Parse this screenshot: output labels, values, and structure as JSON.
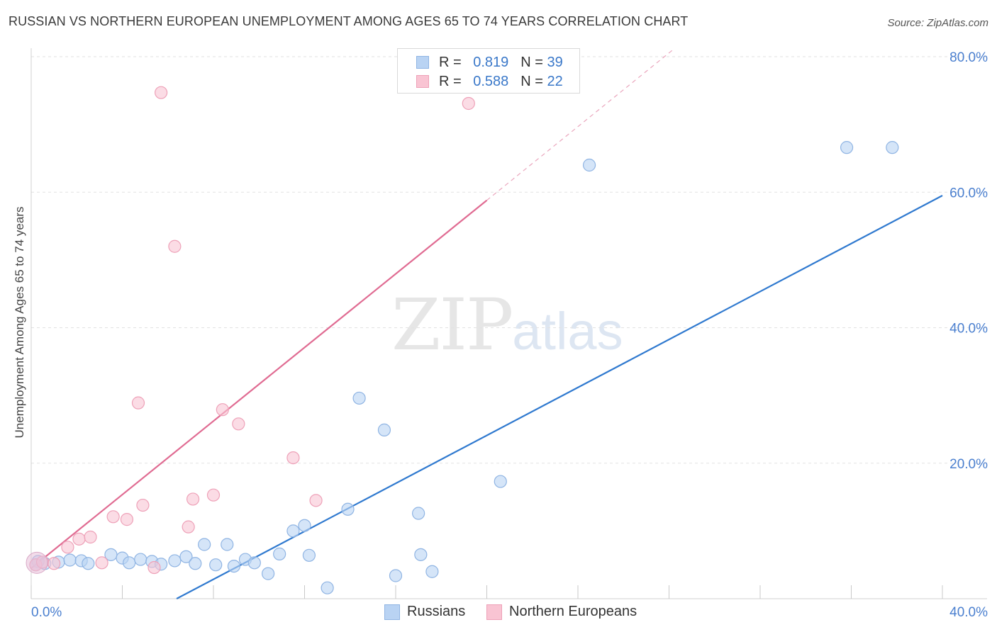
{
  "title": "RUSSIAN VS NORTHERN EUROPEAN UNEMPLOYMENT AMONG AGES 65 TO 74 YEARS CORRELATION CHART",
  "source": "Source: ZipAtlas.com",
  "watermark": {
    "zip": "ZIP",
    "atlas": "atlas"
  },
  "legend": {
    "rows": [
      {
        "r_label": "R =",
        "r_value": "0.819",
        "n_label": "N =",
        "n_value": "39"
      },
      {
        "r_label": "R =",
        "r_value": "0.588",
        "n_label": "N =",
        "n_value": "22"
      }
    ]
  },
  "bottom_legend": {
    "russians": "Russians",
    "northern": "Northern Europeans"
  },
  "colors": {
    "blue_fill": "#b9d3f3",
    "blue_stroke": "#8fb4e3",
    "blue_line": "#2f79cf",
    "pink_fill": "#f9c4d3",
    "pink_stroke": "#eea1b8",
    "pink_line": "#e06b92",
    "tick_text": "#4a7fcf",
    "grid": "#e2e2e2"
  },
  "chart_data": {
    "type": "scatter",
    "title": "RUSSIAN VS NORTHERN EUROPEAN UNEMPLOYMENT AMONG AGES 65 TO 74 YEARS CORRELATION CHART",
    "xlabel": "",
    "ylabel": "Unemployment Among Ages 65 to 74 years",
    "xlim": [
      0,
      40
    ],
    "ylim": [
      0,
      80
    ],
    "x_tick_labels": [
      "0.0%",
      "40.0%"
    ],
    "y_ticks": [
      20,
      40,
      60,
      80
    ],
    "y_tick_labels": [
      "20.0%",
      "40.0%",
      "60.0%",
      "80.0%"
    ],
    "series": [
      {
        "name": "Russians",
        "color": "blue",
        "points": [
          [
            0.3,
            5.5
          ],
          [
            0.6,
            5.2
          ],
          [
            1.2,
            5.4
          ],
          [
            1.7,
            5.7
          ],
          [
            2.2,
            5.6
          ],
          [
            2.5,
            5.2
          ],
          [
            3.5,
            6.5
          ],
          [
            4.0,
            6.0
          ],
          [
            4.3,
            5.3
          ],
          [
            4.8,
            5.8
          ],
          [
            5.3,
            5.5
          ],
          [
            5.7,
            5.1
          ],
          [
            6.3,
            5.6
          ],
          [
            6.8,
            6.2
          ],
          [
            7.2,
            5.2
          ],
          [
            7.6,
            8.0
          ],
          [
            8.1,
            5.0
          ],
          [
            8.6,
            8.0
          ],
          [
            8.9,
            4.8
          ],
          [
            9.4,
            5.8
          ],
          [
            9.8,
            5.3
          ],
          [
            10.4,
            3.7
          ],
          [
            10.9,
            6.6
          ],
          [
            11.5,
            10.0
          ],
          [
            12.0,
            10.8
          ],
          [
            12.2,
            6.4
          ],
          [
            13.0,
            1.6
          ],
          [
            13.9,
            13.2
          ],
          [
            14.4,
            29.6
          ],
          [
            15.5,
            24.9
          ],
          [
            16.0,
            3.4
          ],
          [
            17.0,
            12.6
          ],
          [
            17.1,
            6.5
          ],
          [
            17.6,
            4.0
          ],
          [
            20.6,
            17.3
          ],
          [
            24.5,
            64.0
          ],
          [
            35.8,
            66.6
          ],
          [
            37.8,
            66.6
          ],
          [
            0.2,
            5.0
          ]
        ],
        "trend": {
          "x1": 0,
          "y1": -11.3,
          "x2": 40,
          "y2": 59.5
        }
      },
      {
        "name": "Northern Europeans",
        "color": "pink",
        "points": [
          [
            0.2,
            5.0
          ],
          [
            0.5,
            5.4
          ],
          [
            1.0,
            5.2
          ],
          [
            1.6,
            7.6
          ],
          [
            2.1,
            8.8
          ],
          [
            2.6,
            9.1
          ],
          [
            3.1,
            5.3
          ],
          [
            3.6,
            12.1
          ],
          [
            4.2,
            11.7
          ],
          [
            4.7,
            28.9
          ],
          [
            4.9,
            13.8
          ],
          [
            5.4,
            4.6
          ],
          [
            5.7,
            74.7
          ],
          [
            6.3,
            52.0
          ],
          [
            6.9,
            10.6
          ],
          [
            7.1,
            14.7
          ],
          [
            8.0,
            15.3
          ],
          [
            8.4,
            27.9
          ],
          [
            9.1,
            25.8
          ],
          [
            11.5,
            20.8
          ],
          [
            12.5,
            14.5
          ],
          [
            19.2,
            73.1
          ]
        ],
        "trend": {
          "x1": 0,
          "y1": 4.5,
          "x2": 20,
          "y2": 58.8,
          "dash_x2": 28.2,
          "dash_y2": 81.1
        }
      }
    ]
  }
}
